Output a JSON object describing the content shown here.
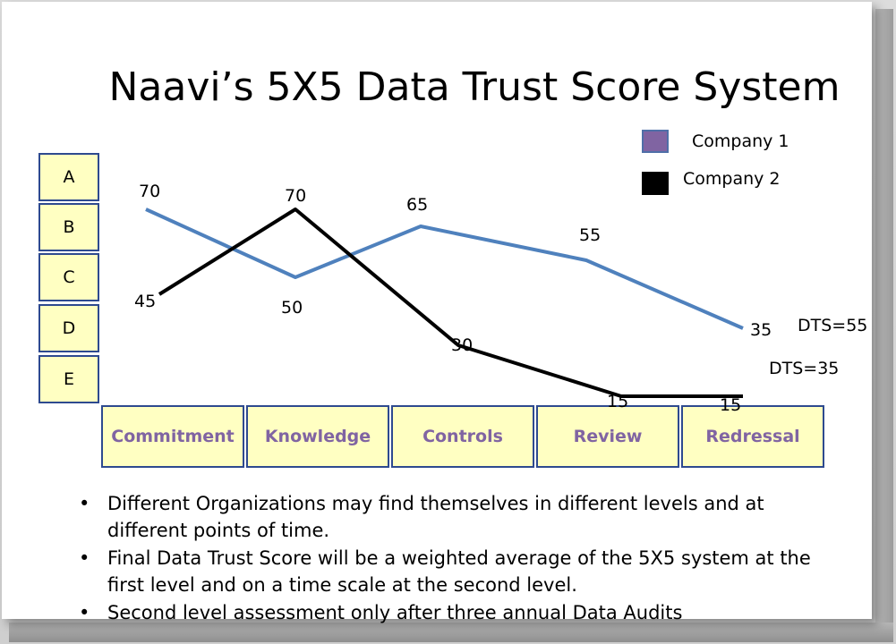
{
  "page": {
    "title": "Naavi’s 5X5 Data Trust Score System"
  },
  "levels": [
    "A",
    "B",
    "C",
    "D",
    "E"
  ],
  "legend": [
    {
      "label": "Company 1",
      "color": "#8064a2",
      "border": "#4f6fa8"
    },
    {
      "label": "Company 2",
      "color": "#000000",
      "border": "#000000"
    }
  ],
  "dts": {
    "company1": "DTS=55",
    "company2": "DTS=35"
  },
  "bullets": [
    "Different Organizations may find themselves in different levels and at different points of time.",
    "Final Data Trust Score will be a weighted average of the 5X5 system at the first level and on a time scale at the second level.",
    "Second level assessment only after three annual Data Audits"
  ],
  "chart_data": {
    "type": "line",
    "categories": [
      "Commitment",
      "Knowledge",
      "Controls",
      "Review",
      "Redressal"
    ],
    "series": [
      {
        "name": "Company 1",
        "color": "#4f81bd",
        "values": [
          70,
          50,
          65,
          55,
          35
        ],
        "labels": [
          "70",
          "50",
          "65",
          "55",
          "35"
        ]
      },
      {
        "name": "Company 2",
        "color": "#000000",
        "values": [
          45,
          70,
          30,
          15,
          15
        ],
        "labels": [
          "45",
          "70",
          "30",
          "15",
          "15"
        ]
      }
    ],
    "y_levels": [
      "A",
      "B",
      "C",
      "D",
      "E"
    ],
    "title": "Naavi’s 5X5 Data Trust Score System",
    "legend_position": "top-right",
    "grid": false
  }
}
